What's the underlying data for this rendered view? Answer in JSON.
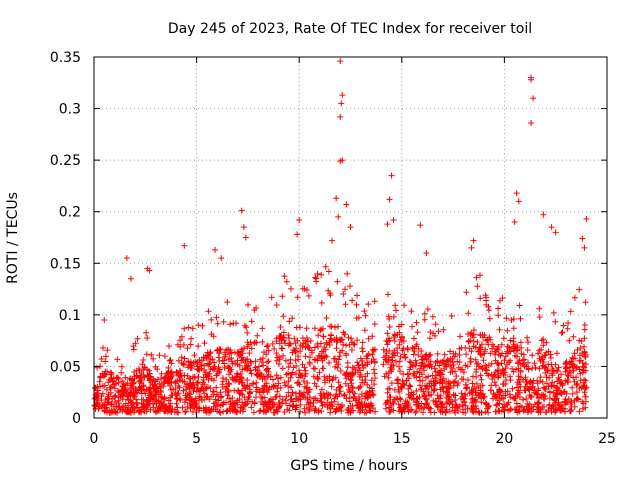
{
  "chart_data": {
    "type": "scatter",
    "title": "Day 245 of 2023, Rate Of TEC Index for receiver toil",
    "xlabel": "GPS time / hours",
    "ylabel": "ROTI / TECUs",
    "xlim": [
      0,
      25
    ],
    "ylim": [
      0,
      0.35
    ],
    "xticks": [
      0,
      5,
      10,
      15,
      20,
      25
    ],
    "yticks": [
      0,
      0.05,
      0.1,
      0.15,
      0.2,
      0.25,
      0.3,
      0.35
    ],
    "xtick_labels": [
      "0",
      "5",
      "10",
      "15",
      "20",
      "25"
    ],
    "ytick_labels": [
      "0",
      "0.05",
      "0.1",
      "0.15",
      "0.2",
      "0.25",
      "0.3",
      "0.35"
    ],
    "grid": true,
    "marker": "+",
    "series_color": "#ff0000",
    "data_gap_hours": [
      13.7,
      14.1
    ],
    "envelope": {
      "x": [
        0,
        0.5,
        1,
        1.5,
        2,
        2.5,
        3,
        3.5,
        4,
        4.5,
        5,
        5.5,
        6,
        6.5,
        7,
        7.5,
        8,
        8.5,
        9,
        9.5,
        10,
        10.5,
        11,
        11.5,
        12,
        12.5,
        13,
        13.5,
        14.2,
        14.5,
        15,
        15.5,
        16,
        16.5,
        17,
        17.5,
        18,
        18.5,
        19,
        19.5,
        20,
        20.5,
        21,
        21.5,
        22,
        22.5,
        23,
        23.5,
        24
      ],
      "typical_max": [
        0.035,
        0.06,
        0.055,
        0.04,
        0.06,
        0.07,
        0.045,
        0.055,
        0.065,
        0.075,
        0.07,
        0.085,
        0.09,
        0.09,
        0.085,
        0.1,
        0.1,
        0.095,
        0.11,
        0.115,
        0.1,
        0.11,
        0.12,
        0.12,
        0.12,
        0.115,
        0.1,
        0.09,
        0.1,
        0.11,
        0.11,
        0.095,
        0.09,
        0.08,
        0.07,
        0.085,
        0.1,
        0.115,
        0.11,
        0.1,
        0.095,
        0.11,
        0.09,
        0.085,
        0.09,
        0.08,
        0.07,
        0.1,
        0.11
      ]
    },
    "notable_points": [
      {
        "x": 0.5,
        "y": 0.095
      },
      {
        "x": 1.6,
        "y": 0.155
      },
      {
        "x": 1.8,
        "y": 0.135
      },
      {
        "x": 2.6,
        "y": 0.145
      },
      {
        "x": 2.7,
        "y": 0.143
      },
      {
        "x": 4.4,
        "y": 0.167
      },
      {
        "x": 5.9,
        "y": 0.163
      },
      {
        "x": 6.2,
        "y": 0.155
      },
      {
        "x": 7.2,
        "y": 0.201
      },
      {
        "x": 7.3,
        "y": 0.185
      },
      {
        "x": 7.4,
        "y": 0.175
      },
      {
        "x": 10.0,
        "y": 0.192
      },
      {
        "x": 9.9,
        "y": 0.178
      },
      {
        "x": 11.6,
        "y": 0.172
      },
      {
        "x": 11.8,
        "y": 0.213
      },
      {
        "x": 11.9,
        "y": 0.195
      },
      {
        "x": 12.0,
        "y": 0.249
      },
      {
        "x": 12.1,
        "y": 0.25
      },
      {
        "x": 12.0,
        "y": 0.292
      },
      {
        "x": 12.05,
        "y": 0.305
      },
      {
        "x": 12.1,
        "y": 0.313
      },
      {
        "x": 12.0,
        "y": 0.346
      },
      {
        "x": 12.3,
        "y": 0.207
      },
      {
        "x": 12.5,
        "y": 0.185
      },
      {
        "x": 14.5,
        "y": 0.235
      },
      {
        "x": 14.4,
        "y": 0.212
      },
      {
        "x": 14.3,
        "y": 0.188
      },
      {
        "x": 14.6,
        "y": 0.192
      },
      {
        "x": 15.9,
        "y": 0.187
      },
      {
        "x": 16.2,
        "y": 0.16
      },
      {
        "x": 18.5,
        "y": 0.172
      },
      {
        "x": 18.4,
        "y": 0.165
      },
      {
        "x": 20.5,
        "y": 0.19
      },
      {
        "x": 20.6,
        "y": 0.218
      },
      {
        "x": 20.7,
        "y": 0.21
      },
      {
        "x": 21.3,
        "y": 0.33
      },
      {
        "x": 21.3,
        "y": 0.328
      },
      {
        "x": 21.4,
        "y": 0.31
      },
      {
        "x": 21.3,
        "y": 0.286
      },
      {
        "x": 21.9,
        "y": 0.197
      },
      {
        "x": 22.3,
        "y": 0.185
      },
      {
        "x": 22.5,
        "y": 0.18
      },
      {
        "x": 23.8,
        "y": 0.174
      },
      {
        "x": 23.9,
        "y": 0.165
      },
      {
        "x": 24.0,
        "y": 0.193
      }
    ]
  }
}
